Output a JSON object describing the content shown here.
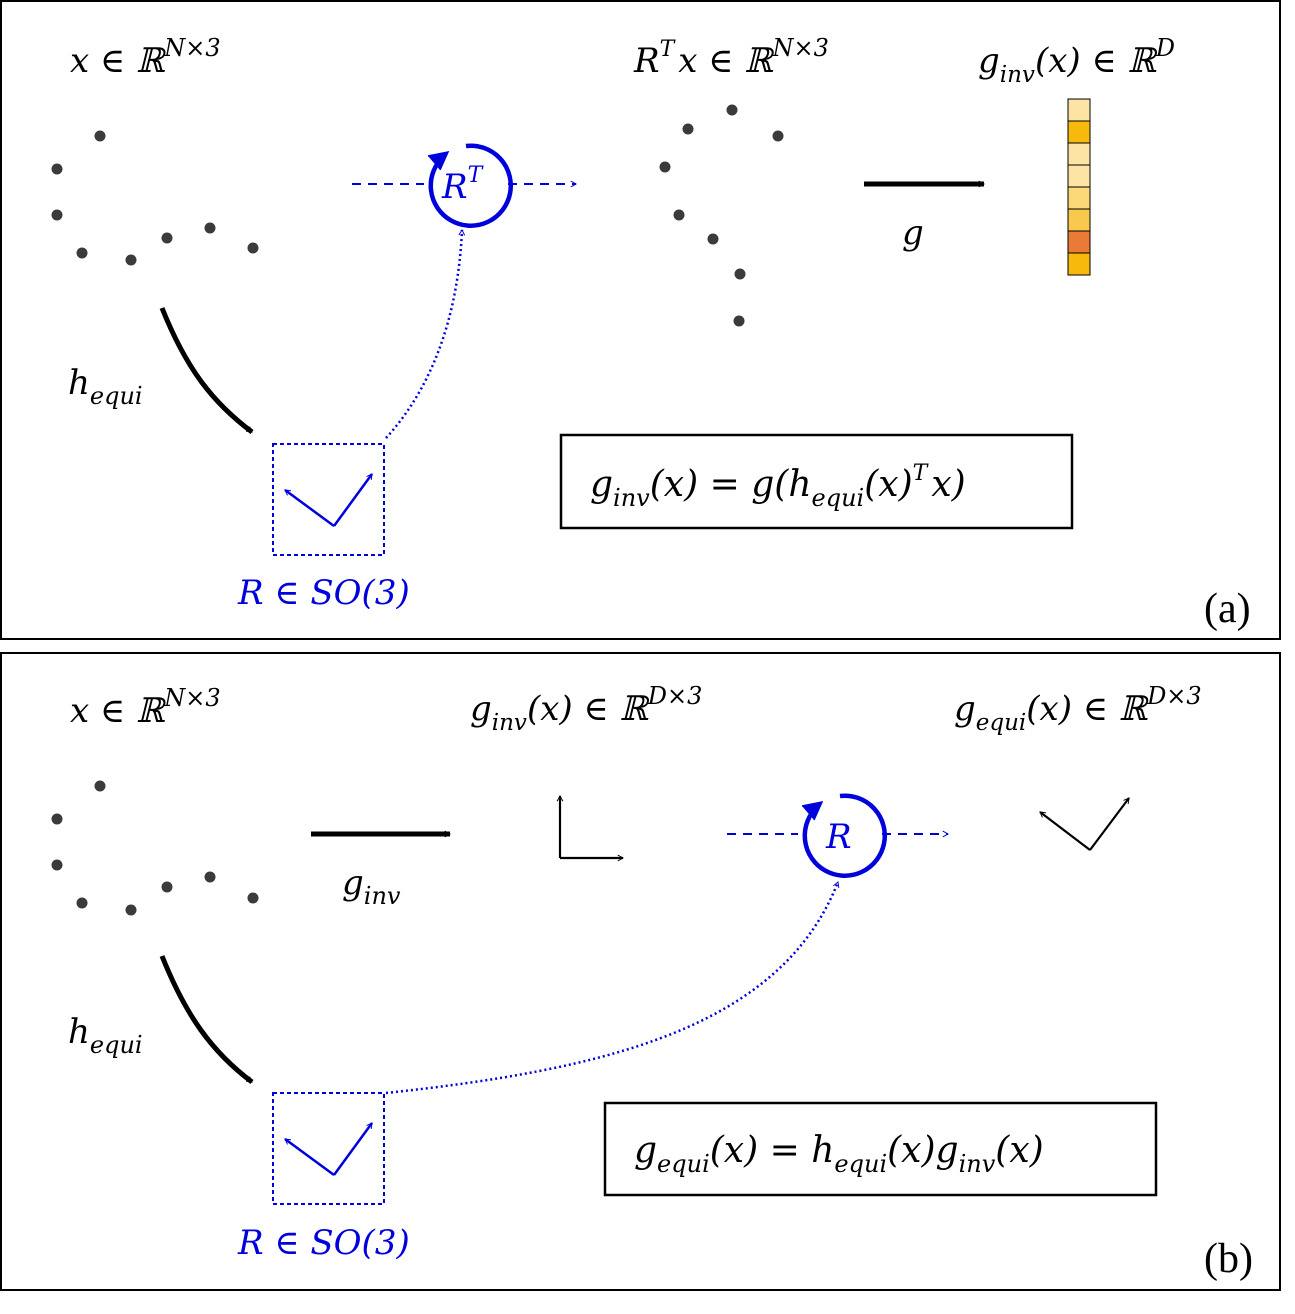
{
  "panel_a": {
    "label": "(a)",
    "input": {
      "var": "x",
      "rel": "∈",
      "space": "ℝ",
      "sup": "N×3"
    },
    "rotated": {
      "base": "R",
      "sup": "T",
      "var": "x",
      "rel": "∈",
      "space": "ℝ",
      "setsup": "N×3"
    },
    "output": {
      "func": "g",
      "sub": "inv",
      "arg": "(x)",
      "rel": "∈",
      "space": "ℝ",
      "sup": "D"
    },
    "rotate_op": {
      "base": "R",
      "sup": "T"
    },
    "map_label": "g",
    "equi_label": {
      "base": "h",
      "sub": "equi"
    },
    "group_label": "R ∈ SO(3)",
    "formula": {
      "lhs_func": "g",
      "lhs_sub": "inv",
      "lhs_arg": "(x)",
      "eq": "=",
      "g": "g",
      "lparen": "(",
      "h": "h",
      "h_sub": "equi",
      "h_arg": "(x)",
      "h_sup": "T",
      "x": "x",
      "rparen": ")"
    },
    "feature_colors": [
      "#fce4a4",
      "#f7b90b",
      "#fce4a4",
      "#fce4a4",
      "#fbd978",
      "#f8c94d",
      "#ea7a38",
      "#f7b90b"
    ]
  },
  "panel_b": {
    "label": "(b)",
    "input": {
      "var": "x",
      "rel": "∈",
      "space": "ℝ",
      "sup": "N×3"
    },
    "invariant": {
      "func": "g",
      "sub": "inv",
      "arg": "(x)",
      "rel": "∈",
      "space": "ℝ",
      "sup": "D×3"
    },
    "equivariant": {
      "func": "g",
      "sub": "equi",
      "arg": "(x)",
      "rel": "∈",
      "space": "ℝ",
      "sup": "D×3"
    },
    "rotate_op": {
      "base": "R"
    },
    "map_label": {
      "base": "g",
      "sub": "inv"
    },
    "equi_label": {
      "base": "h",
      "sub": "equi"
    },
    "group_label": "R ∈ SO(3)",
    "formula": {
      "lhs_func": "g",
      "lhs_sub": "equi",
      "lhs_arg": "(x)",
      "eq": "=",
      "h": "h",
      "h_sub": "equi",
      "h_arg": "(x)",
      "g": "g",
      "g_sub": "inv",
      "g_arg": "(x)"
    }
  },
  "colors": {
    "blue": "#0000dd",
    "black": "#000000",
    "point": "#3b3b3b"
  }
}
